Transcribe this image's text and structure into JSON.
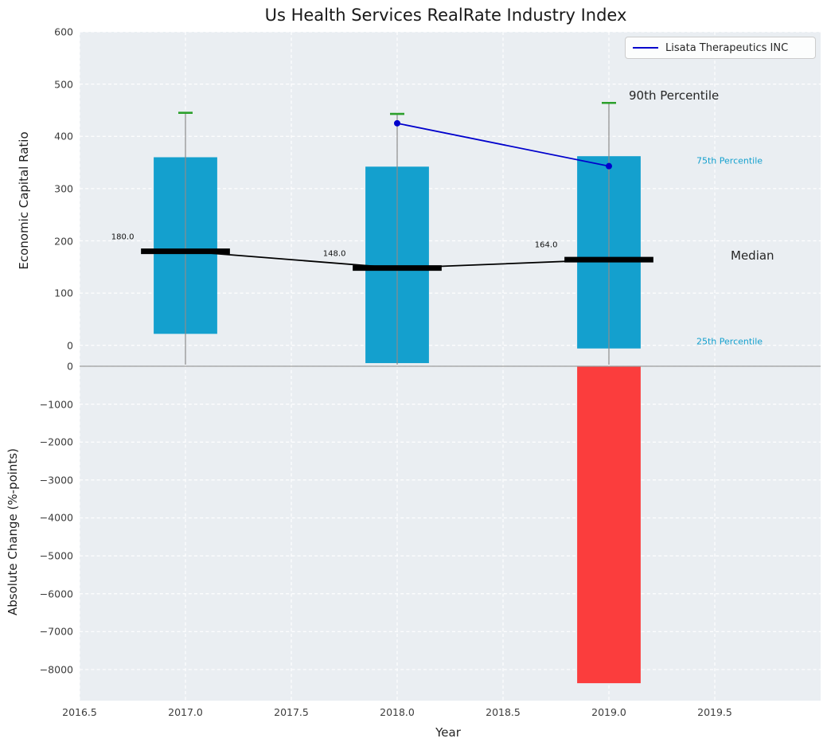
{
  "chart_data": {
    "type": "bar",
    "title": "Us Health Services RealRate Industry Index",
    "xlabel": "Year",
    "xlim": [
      2016.5,
      2020.0
    ],
    "x": [
      2017,
      2018,
      2019
    ],
    "x_ticks": [
      "2016.5",
      "2017.0",
      "2017.5",
      "2018.0",
      "2018.5",
      "2019.0",
      "2019.5"
    ],
    "x_tick_values": [
      2016.5,
      2017.0,
      2017.5,
      2018.0,
      2018.5,
      2019.0,
      2019.5
    ],
    "top_panel": {
      "ylabel": "Economic Capital Ratio",
      "ylim": [
        -40,
        600
      ],
      "y_ticks": [
        "600",
        "500",
        "400",
        "300",
        "200",
        "100",
        "0"
      ],
      "y_tick_values": [
        600,
        500,
        400,
        300,
        200,
        100,
        0
      ],
      "series": {
        "p25": [
          22,
          -34,
          -6
        ],
        "median": [
          180,
          148,
          164
        ],
        "p75": [
          360,
          342,
          362
        ],
        "p90": [
          445,
          443,
          464
        ],
        "whisker_low": [
          -37,
          -37,
          -37
        ]
      },
      "median_labels": [
        "180.0",
        "148.0",
        "164.0"
      ],
      "company_line": {
        "name": "Lisata Therapeutics INC",
        "x": [
          2018,
          2019
        ],
        "y": [
          425,
          343
        ]
      }
    },
    "bottom_panel": {
      "ylabel": "Absolute Change (%-points)",
      "ylim": [
        -8820,
        0
      ],
      "y_ticks": [
        "0",
        "−1000",
        "−2000",
        "−3000",
        "−4000",
        "−5000",
        "−6000",
        "−7000",
        "−8000"
      ],
      "y_tick_values": [
        0,
        -1000,
        -2000,
        -3000,
        -4000,
        -5000,
        -6000,
        -7000,
        -8000
      ],
      "bars": {
        "x": [
          2019
        ],
        "values": [
          -8360
        ]
      }
    },
    "annotations": {
      "p90": "90th Percentile",
      "p75": "75th Percentile",
      "median": "Median",
      "p25": "25th Percentile"
    },
    "legend": {
      "label": "Lisata Therapeutics INC"
    },
    "colors": {
      "iqr_bar": "#14a0ce",
      "negative_bar": "#fb3d3d",
      "p90_cap": "#2ca02c",
      "company_line": "#0000cc",
      "median_line": "#000000",
      "whisker": "#8c8c8c",
      "plot_background": "#eaeef2",
      "grid": "#ffffff",
      "zero_line": "#9b9b9b"
    }
  }
}
